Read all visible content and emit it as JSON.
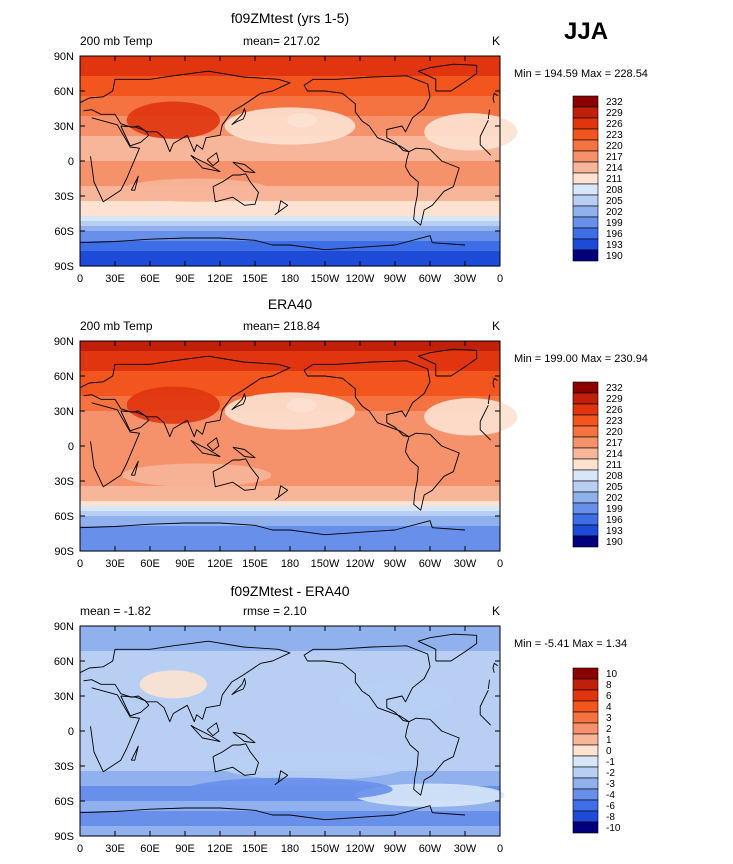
{
  "season": "JJA",
  "lon_ticks": [
    "0",
    "30E",
    "60E",
    "90E",
    "120E",
    "150E",
    "180",
    "150W",
    "120W",
    "90W",
    "60W",
    "30W",
    "0"
  ],
  "lat_ticks": [
    "90N",
    "60N",
    "30N",
    "0",
    "30S",
    "60S",
    "90S"
  ],
  "chart_data": [
    {
      "type": "heatmap",
      "title": "f09ZMtest (yrs 1-5)",
      "left_label": "200 mb Temp",
      "center_label": "mean= 217.02",
      "right_label": "K",
      "minmax_label": "Min = 194.59 Max = 228.54",
      "min": 194.59,
      "max": 228.54,
      "mean": 217.02,
      "colorbar_levels": [
        "232",
        "229",
        "226",
        "223",
        "220",
        "217",
        "214",
        "211",
        "208",
        "205",
        "202",
        "199",
        "196",
        "193",
        "190"
      ],
      "colorbar_colors": [
        "#8b0000",
        "#c0200a",
        "#e0350f",
        "#f2561e",
        "#f47340",
        "#f5926b",
        "#f7b59a",
        "#fde2d2",
        "#d8e7f8",
        "#b8cff3",
        "#90b0ee",
        "#6890ea",
        "#3e6ee6",
        "#1d4ad6",
        "#00007f"
      ],
      "lat_profile": [
        [
          90,
          229
        ],
        [
          75,
          226
        ],
        [
          60,
          224
        ],
        [
          45,
          221
        ],
        [
          30,
          218
        ],
        [
          15,
          216
        ],
        [
          0,
          217
        ],
        [
          -15,
          218
        ],
        [
          -30,
          216
        ],
        [
          -45,
          211
        ],
        [
          -55,
          205
        ],
        [
          -65,
          200
        ],
        [
          -75,
          196
        ],
        [
          -85,
          194
        ],
        [
          -90,
          194
        ]
      ]
    },
    {
      "type": "heatmap",
      "title": "ERA40",
      "left_label": "200 mb Temp",
      "center_label": "mean= 218.84",
      "right_label": "K",
      "minmax_label": "Min = 199.00 Max = 230.94",
      "min": 199.0,
      "max": 230.94,
      "mean": 218.84,
      "colorbar_levels": [
        "232",
        "229",
        "226",
        "223",
        "220",
        "217",
        "214",
        "211",
        "208",
        "205",
        "202",
        "199",
        "196",
        "193",
        "190"
      ],
      "colorbar_colors": [
        "#8b0000",
        "#c0200a",
        "#e0350f",
        "#f2561e",
        "#f47340",
        "#f5926b",
        "#f7b59a",
        "#fde2d2",
        "#d8e7f8",
        "#b8cff3",
        "#90b0ee",
        "#6890ea",
        "#3e6ee6",
        "#1d4ad6",
        "#00007f"
      ],
      "lat_profile": [
        [
          90,
          231
        ],
        [
          75,
          228
        ],
        [
          60,
          225
        ],
        [
          45,
          223
        ],
        [
          30,
          220
        ],
        [
          15,
          218
        ],
        [
          0,
          219
        ],
        [
          -15,
          219
        ],
        [
          -30,
          218
        ],
        [
          -45,
          215
        ],
        [
          -55,
          209
        ],
        [
          -62,
          204
        ],
        [
          -70,
          201
        ],
        [
          -80,
          200
        ],
        [
          -90,
          199
        ]
      ]
    },
    {
      "type": "heatmap",
      "title": "f09ZMtest - ERA40",
      "left_label": "mean =   -1.82",
      "center_label": "rmse =    2.10",
      "right_label": "K",
      "minmax_label": "Min =   -5.41 Max =    1.34",
      "min": -5.41,
      "max": 1.34,
      "mean": -1.82,
      "rmse": 2.1,
      "colorbar_levels": [
        "10",
        "8",
        "6",
        "4",
        "3",
        "2",
        "1",
        "0",
        "-1",
        "-2",
        "-3",
        "-4",
        "-6",
        "-8",
        "-10"
      ],
      "colorbar_colors": [
        "#8b0000",
        "#c0200a",
        "#e0350f",
        "#f2561e",
        "#f47340",
        "#f5926b",
        "#f7b59a",
        "#fde2d2",
        "#d8e7f8",
        "#b8cff3",
        "#90b0ee",
        "#6890ea",
        "#3e6ee6",
        "#1d4ad6",
        "#00007f"
      ],
      "lat_profile": [
        [
          90,
          -3
        ],
        [
          75,
          -2.5
        ],
        [
          60,
          -1.5
        ],
        [
          45,
          -1.2
        ],
        [
          30,
          -1.5
        ],
        [
          15,
          -1.6
        ],
        [
          0,
          -1.5
        ],
        [
          -15,
          -1.6
        ],
        [
          -30,
          -1.8
        ],
        [
          -45,
          -3
        ],
        [
          -55,
          -3.5
        ],
        [
          -65,
          -2.5
        ],
        [
          -75,
          -3.5
        ],
        [
          -90,
          -2.5
        ]
      ]
    }
  ]
}
